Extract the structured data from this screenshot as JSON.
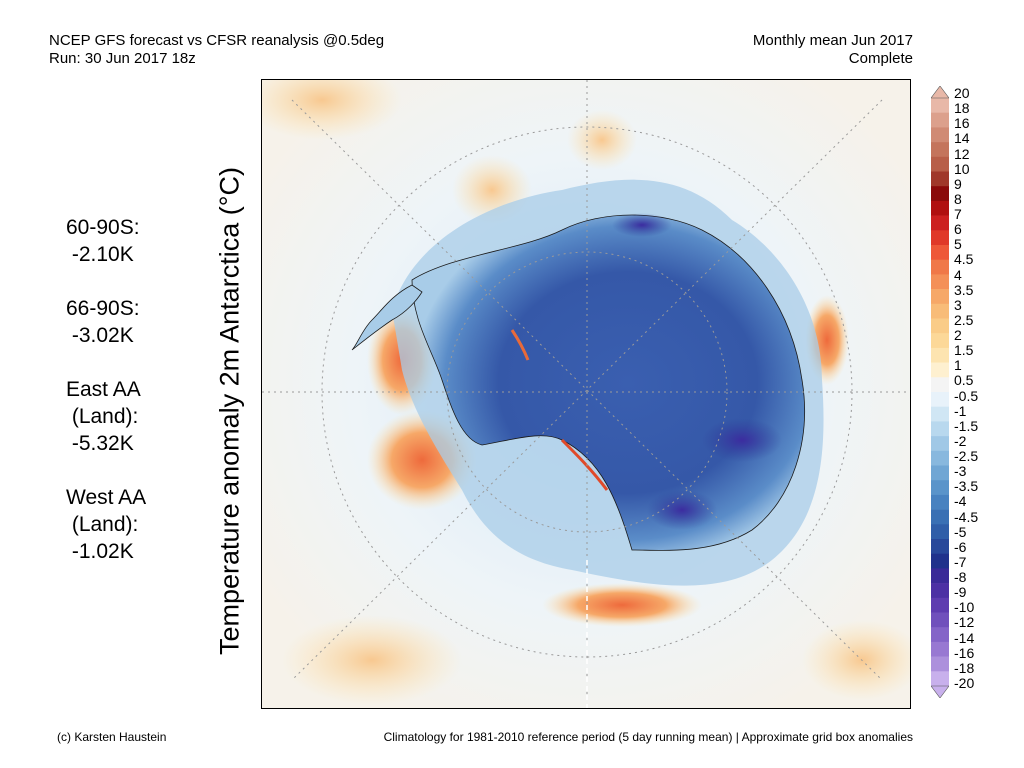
{
  "header": {
    "title_line1": "NCEP GFS forecast vs CFSR reanalysis @0.5deg",
    "title_line2": "Run: 30 Jun 2017 18z",
    "right_line1": "Monthly mean Jun 2017",
    "right_line2": "Complete"
  },
  "ylabel": "Temperature anomaly 2m Antarctica (°C)",
  "stats": [
    {
      "line1": "60-90S:",
      "line2": " -2.10K",
      "line3": ""
    },
    {
      "line1": "66-90S:",
      "line2": " -3.02K",
      "line3": ""
    },
    {
      "line1": "East AA",
      "line2": " (Land):",
      "line3": " -5.32K"
    },
    {
      "line1": "West AA",
      "line2": " (Land):",
      "line3": " -1.02K"
    }
  ],
  "colorbar": {
    "labels": [
      "20",
      "18",
      "16",
      "14",
      "12",
      "10",
      "9",
      "8",
      "7",
      "6",
      "5",
      "4.5",
      "4",
      "3.5",
      "3",
      "2.5",
      "2",
      "1.5",
      "1",
      "0.5",
      "-0.5",
      "-1",
      "-1.5",
      "-2",
      "-2.5",
      "-3",
      "-3.5",
      "-4",
      "-4.5",
      "-5",
      "-6",
      "-7",
      "-8",
      "-9",
      "-10",
      "-12",
      "-14",
      "-16",
      "-18",
      "-20"
    ],
    "colors": [
      "#e8b8a8",
      "#dca08c",
      "#d08a74",
      "#c4745c",
      "#b85e48",
      "#a0382a",
      "#8a0a0a",
      "#b01010",
      "#cc2020",
      "#e03828",
      "#ee5838",
      "#f07848",
      "#f49058",
      "#f6a868",
      "#f8bc78",
      "#facc88",
      "#fcd898",
      "#fde4b0",
      "#fef0d0",
      "#f4f4f4",
      "#e8f2fa",
      "#d0e6f4",
      "#b8d8ee",
      "#a0c8e6",
      "#88b8de",
      "#70a6d4",
      "#5a94ca",
      "#4882c0",
      "#3a70b4",
      "#305ea8",
      "#28489a",
      "#20328c",
      "#3a2a98",
      "#4c30a4",
      "#5e3cb0",
      "#7050bc",
      "#8464c8",
      "#9878d2",
      "#ac90dc",
      "#c8b0ec"
    ]
  },
  "footer": {
    "left": "(c) Karsten Haustein",
    "right": "Climatology for 1981-2010 reference period (5 day running mean) | Approximate grid box anomalies"
  }
}
